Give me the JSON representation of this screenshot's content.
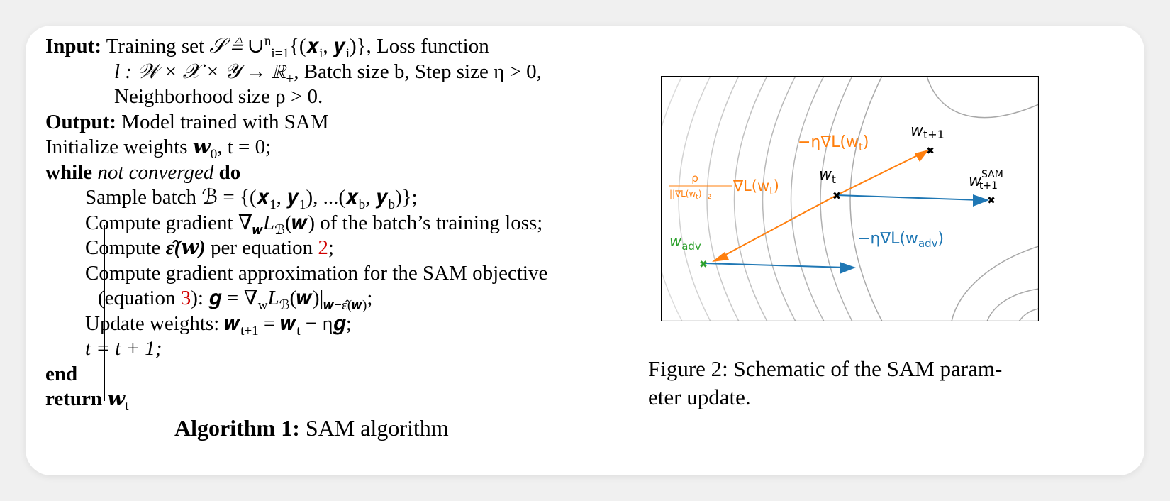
{
  "algorithm": {
    "input_label": "Input:",
    "input_line1_a": "Training set ",
    "input_line1_math": "𝒮 ≜ ∪",
    "input_line1_sub": "i=1",
    "input_line1_sup": "n",
    "input_line1_b": "{(𝒙",
    "input_line1_c": ", 𝒚",
    "input_line1_d": ")}, Loss function",
    "input_line2_math": "l : 𝒲 × 𝒳 × 𝒴 → ℝ",
    "input_line2_sub": "+",
    "input_line2_rest": ", Batch size b, Step size η > 0,",
    "input_line3": "Neighborhood size ρ > 0.",
    "output_label": "Output:",
    "output_text": "Model trained with SAM",
    "init_text_a": "Initialize weights ",
    "init_w": "𝒘",
    "init_sub": "0",
    "init_text_b": ", t = 0;",
    "while_kw": "while",
    "while_cond": "not converged",
    "do_kw": "do",
    "step1_a": "Sample batch ℬ = {(𝒙",
    "step1_s1": "1",
    "step1_b": ", 𝒚",
    "step1_s2": "1",
    "step1_c": "), ...(𝒙",
    "step1_s3": "b",
    "step1_d": ", 𝒚",
    "step1_s4": "b",
    "step1_e": ")};",
    "step2_a": "Compute gradient ∇",
    "step2_sub": "𝒘",
    "step2_b": "L",
    "step2_sub2": "ℬ",
    "step2_c": "(𝒘) of the batch’s training loss;",
    "step3_a": "Compute ",
    "step3_eps": "ε̂(𝒘)",
    "step3_b": " per equation ",
    "step3_ref": "2",
    "step3_c": ";",
    "step4": "Compute gradient approximation for the SAM objective",
    "step5_a": "(equation ",
    "step5_ref": "3",
    "step5_b": "): 𝒈 = ∇",
    "step5_sub": "w",
    "step5_c": "L",
    "step5_sub2": "ℬ",
    "step5_d": "(𝒘)|",
    "step5_sub3": "𝒘+ε̂(𝒘)",
    "step5_e": ";",
    "step6_a": "Update weights: 𝒘",
    "step6_sub1": "t+1",
    "step6_b": " = 𝒘",
    "step6_sub2": "t",
    "step6_c": " − η𝒈;",
    "step7": "t = t + 1;",
    "end_kw": "end",
    "return_kw": "return",
    "return_w": "𝒘",
    "return_sub": "t",
    "caption_label": "Algorithm 1:",
    "caption_text": "SAM algorithm"
  },
  "figure": {
    "label_w_t1": "w",
    "label_w_t1_sub": "t+1",
    "label_grad_orange": "−η∇L(w",
    "label_grad_orange_sub": "t",
    "label_grad_orange_end": ")",
    "label_w_t": "w",
    "label_w_t_sub": "t",
    "label_w_sam": "w",
    "label_w_sam_sup": "SAM",
    "label_w_sam_sub": "t+1",
    "label_rho_num": "ρ",
    "label_rho_den": "||∇L(w",
    "label_rho_den_sub": "t",
    "label_rho_den_end": ")||",
    "label_rho_den_2": "2",
    "label_rho_grad": "∇L(w",
    "label_rho_grad_sub": "t",
    "label_rho_grad_end": ")",
    "label_w_adv": "w",
    "label_w_adv_sub": "adv",
    "label_grad_blue": "−η∇L(w",
    "label_grad_blue_sub": "adv",
    "label_grad_blue_end": ")",
    "colors": {
      "orange": "#ff7f0e",
      "blue": "#1f77b4",
      "green": "#2ca02c",
      "contour": "#b4b4b4",
      "frame": "#000000"
    },
    "caption": "Figure 2: Schematic of the SAM param-eter update.",
    "caption_line1": "Figure 2: Schematic of the SAM param-",
    "caption_line2": "eter update."
  }
}
